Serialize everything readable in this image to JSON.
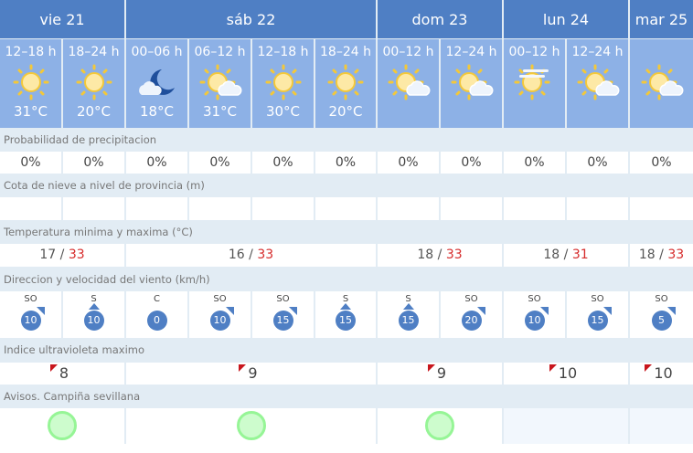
{
  "days": [
    {
      "label": "vie 21",
      "span": 2
    },
    {
      "label": "sáb 22",
      "span": 4
    },
    {
      "label": "dom 23",
      "span": 2
    },
    {
      "label": "lun 24",
      "span": 2
    },
    {
      "label": "mar 25",
      "span": 1
    }
  ],
  "periods": [
    {
      "label": "12–18 h",
      "icon": "sun",
      "temp": "31°C"
    },
    {
      "label": "18–24 h",
      "icon": "sun",
      "temp": "20°C"
    },
    {
      "label": "00–06 h",
      "icon": "moon-cloud",
      "temp": "18°C"
    },
    {
      "label": "06–12 h",
      "icon": "sun-cloud",
      "temp": "31°C"
    },
    {
      "label": "12–18 h",
      "icon": "sun",
      "temp": "30°C"
    },
    {
      "label": "18–24 h",
      "icon": "sun",
      "temp": "20°C"
    },
    {
      "label": "00–12 h",
      "icon": "sun-cloud",
      "temp": ""
    },
    {
      "label": "12–24 h",
      "icon": "sun-cloud",
      "temp": ""
    },
    {
      "label": "00–12 h",
      "icon": "sun-haze",
      "temp": ""
    },
    {
      "label": "12–24 h",
      "icon": "sun-cloud",
      "temp": ""
    },
    {
      "label": "",
      "icon": "sun-cloud",
      "temp": ""
    }
  ],
  "labels": {
    "precip": "Probabilidad de precipitacion",
    "snow": "Cota de nieve a nivel de provincia (m)",
    "temp": "Temperatura minima y maxima (°C)",
    "wind": "Direccion y velocidad del viento (km/h)",
    "uv": "Indice ultravioleta maximo",
    "warn": "Avisos. Campiña sevillana"
  },
  "precip": [
    "0%",
    "0%",
    "0%",
    "0%",
    "0%",
    "0%",
    "0%",
    "0%",
    "0%",
    "0%",
    "0%"
  ],
  "snow": [
    "",
    "",
    "",
    "",
    "",
    "",
    "",
    "",
    "",
    "",
    ""
  ],
  "temps": [
    {
      "min": "17",
      "max": "33"
    },
    {
      "min": "16",
      "max": "33"
    },
    {
      "min": "18",
      "max": "33"
    },
    {
      "min": "18",
      "max": "31"
    },
    {
      "min": "18",
      "max": "33"
    }
  ],
  "wind": [
    {
      "dir": "SO",
      "speed": "10"
    },
    {
      "dir": "S",
      "speed": "10"
    },
    {
      "dir": "C",
      "speed": "0"
    },
    {
      "dir": "SO",
      "speed": "10"
    },
    {
      "dir": "SO",
      "speed": "15"
    },
    {
      "dir": "S",
      "speed": "15"
    },
    {
      "dir": "S",
      "speed": "15"
    },
    {
      "dir": "SO",
      "speed": "20"
    },
    {
      "dir": "SO",
      "speed": "10"
    },
    {
      "dir": "SO",
      "speed": "15"
    },
    {
      "dir": "SO",
      "speed": "5"
    }
  ],
  "uv": [
    "8",
    "9",
    "9",
    "10",
    "10"
  ],
  "warnings": [
    {
      "level": "green"
    },
    {
      "level": "green"
    },
    {
      "level": "green"
    },
    {
      "level": "none"
    },
    {
      "level": "none"
    }
  ],
  "colors": {
    "header": "#4f7fc4",
    "period": "#8db1e6",
    "uv_flag": "#c8161d",
    "warn_green": "#96f596",
    "temp_max": "#d62c2c"
  }
}
